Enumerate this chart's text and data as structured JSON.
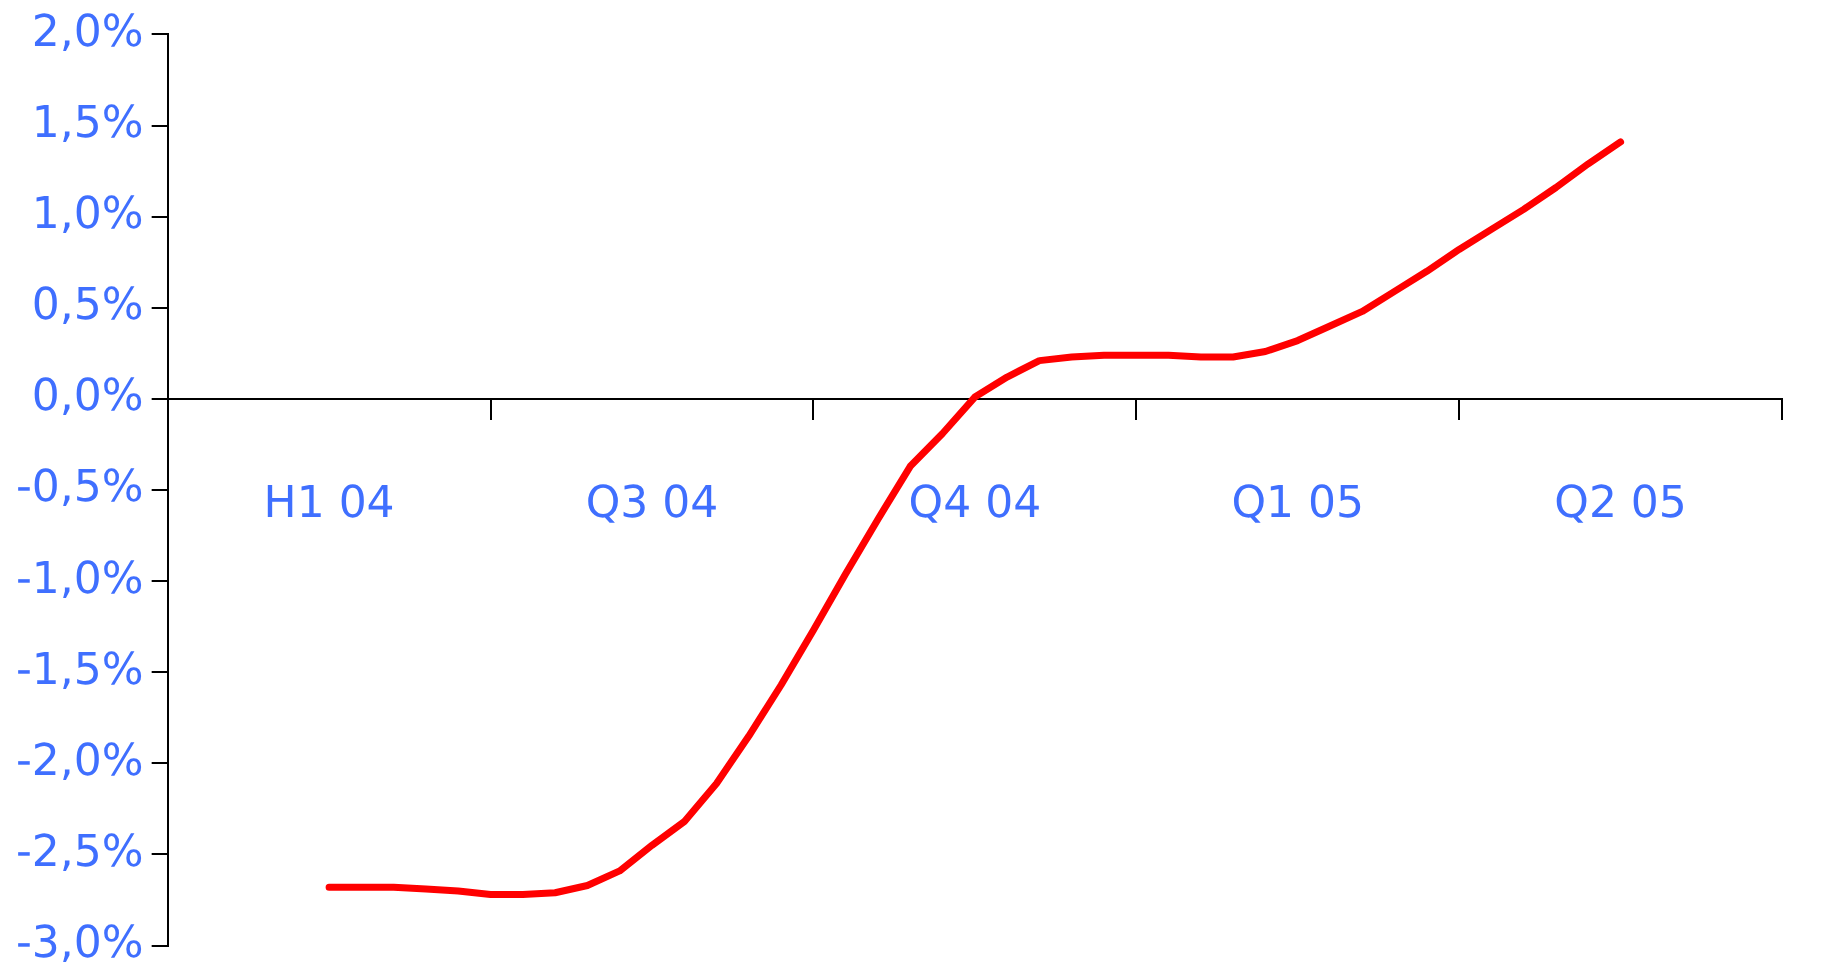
{
  "chart_data": {
    "type": "line",
    "categories": [
      null,
      null,
      null,
      null,
      null,
      "H1 04",
      null,
      null,
      null,
      null,
      null,
      null,
      null,
      null,
      null,
      "Q3 04",
      null,
      null,
      null,
      null,
      null,
      null,
      null,
      null,
      null,
      "Q4 04",
      null,
      null,
      null,
      null,
      null,
      null,
      null,
      null,
      null,
      "Q1 05",
      null,
      null,
      null,
      null,
      null,
      null,
      null,
      null,
      null,
      "Q2 05",
      null,
      null,
      null,
      null,
      null
    ],
    "series": [
      {
        "color": "#ff0000",
        "values": [
          null,
          null,
          null,
          null,
          null,
          -2.68,
          -2.68,
          -2.68,
          -2.69,
          -2.7,
          -2.72,
          -2.72,
          -2.71,
          -2.67,
          -2.59,
          -2.45,
          -2.32,
          -2.11,
          -1.85,
          -1.57,
          -1.27,
          -0.96,
          -0.66,
          -0.37,
          -0.19,
          0.01,
          0.12,
          0.21,
          0.23,
          0.24,
          0.24,
          0.24,
          0.23,
          0.23,
          0.26,
          0.32,
          0.4,
          0.48,
          0.59,
          0.7,
          0.82,
          0.93,
          1.04,
          1.16,
          1.29,
          1.41,
          null,
          null,
          null,
          null,
          null
        ]
      }
    ],
    "ylim": [
      -3,
      2
    ],
    "yticks": [
      {
        "value": -3,
        "label": "-3,0%"
      },
      {
        "value": -2.5,
        "label": "-2,5%"
      },
      {
        "value": -2,
        "label": "-2,0%"
      },
      {
        "value": -1.5,
        "label": "-1,5%"
      },
      {
        "value": -1,
        "label": "-1,0%"
      },
      {
        "value": -0.5,
        "label": "-0,5%"
      },
      {
        "value": 0,
        "label": "0,0%"
      },
      {
        "value": 0.5,
        "label": "0,5%"
      },
      {
        "value": 1,
        "label": "1,0%"
      },
      {
        "value": 1.5,
        "label": "1,5%"
      },
      {
        "value": 2,
        "label": "2,0%"
      }
    ],
    "grid": false,
    "legend": false,
    "marker": "none",
    "line_style": "solid"
  }
}
